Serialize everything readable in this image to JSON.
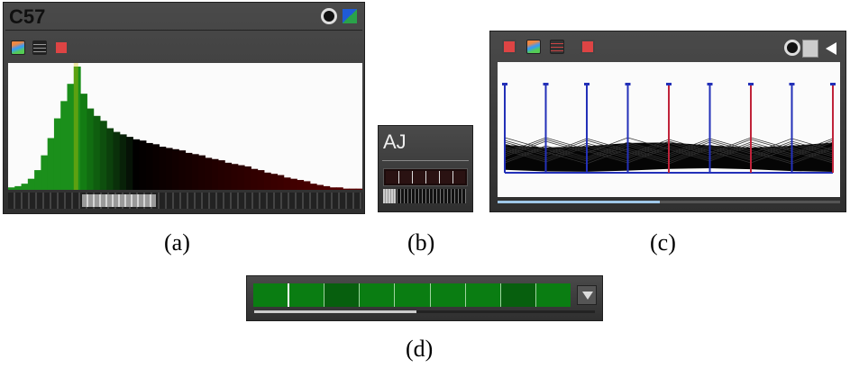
{
  "panel_a": {
    "title": "C57",
    "caption": "(a)",
    "histogram": [
      2,
      3,
      5,
      9,
      16,
      28,
      42,
      58,
      72,
      86,
      100,
      78,
      66,
      60,
      56,
      50,
      47,
      45,
      43,
      41,
      40,
      38,
      37,
      35,
      34,
      33,
      32,
      30,
      29,
      28,
      26,
      25,
      24,
      22,
      21,
      20,
      19,
      17,
      16,
      14,
      13,
      12,
      10,
      9,
      8,
      7,
      5,
      4,
      3,
      2,
      2,
      1,
      1,
      1
    ]
  },
  "panel_b": {
    "title": "AJ",
    "caption": "(b)"
  },
  "panel_c": {
    "caption": "(c)",
    "axes_count": 9
  },
  "panel_d": {
    "caption": "(d)",
    "segments_count": 9
  },
  "colors": {
    "panel_bg": "#3a3a3a",
    "green": "#0a7d12",
    "line_blue": "#2330b8",
    "line_red": "#c0233a"
  }
}
